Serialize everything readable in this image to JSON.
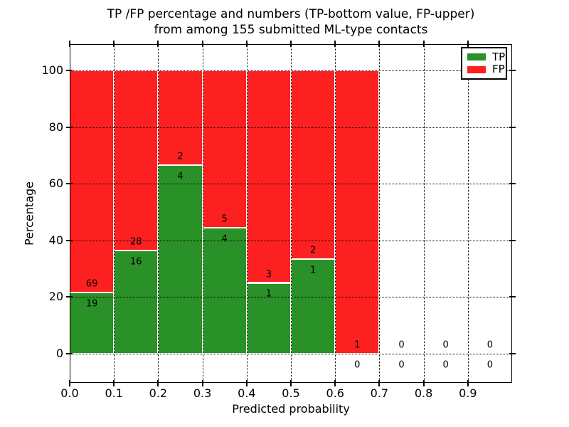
{
  "figure": {
    "title_line1": "TP /FP percentage and numbers (TP-bottom value, FP-upper)",
    "title_line2": "from among 155 submitted ML-type contacts"
  },
  "axes": {
    "xlabel": "Predicted probability",
    "ylabel": "Percentage",
    "x_tick_labels": [
      "0.0",
      "0.1",
      "0.2",
      "0.3",
      "0.4",
      "0.5",
      "0.6",
      "0.7",
      "0.8",
      "0.9"
    ],
    "y_tick_labels": [
      "0",
      "20",
      "40",
      "60",
      "80",
      "100"
    ]
  },
  "legend": {
    "position": "upper right",
    "entries": [
      {
        "label": "TP",
        "color": "#2a9128"
      },
      {
        "label": "FP",
        "color": "#fd2020"
      }
    ]
  },
  "chart_data": {
    "type": "bar",
    "subtype": "stacked-percentage-histogram",
    "title": "TP /FP percentage and numbers (TP-bottom value, FP-upper) from among 155 submitted ML-type contacts",
    "xlabel": "Predicted probability",
    "ylabel": "Percentage",
    "total_contacts": 155,
    "xlim": [
      0.0,
      1.0
    ],
    "ylim": [
      -10.3,
      109.3
    ],
    "x_ticks": [
      0.0,
      0.1,
      0.2,
      0.3,
      0.4,
      0.5,
      0.6,
      0.7,
      0.8,
      0.9
    ],
    "y_ticks": [
      0,
      20,
      40,
      60,
      80,
      100
    ],
    "bin_width": 0.1,
    "categories": [
      "0.0-0.1",
      "0.1-0.2",
      "0.2-0.3",
      "0.3-0.4",
      "0.4-0.5",
      "0.5-0.6",
      "0.6-0.7",
      "0.7-0.8",
      "0.8-0.9",
      "0.9-1.0"
    ],
    "series": [
      {
        "name": "TP",
        "color": "#2a9128",
        "counts": [
          19,
          16,
          4,
          4,
          1,
          1,
          0,
          0,
          0,
          0
        ]
      },
      {
        "name": "FP",
        "color": "#fd2020",
        "counts": [
          69,
          28,
          2,
          5,
          3,
          2,
          1,
          0,
          0,
          0
        ]
      }
    ],
    "tp_percent_of_bin": [
      21.6,
      36.4,
      66.7,
      44.4,
      25.0,
      33.3,
      0.0,
      null,
      null,
      null
    ],
    "bars_reach_percent": 100,
    "bar_edge_color": "#ffffff",
    "grid": {
      "visible": true,
      "linestyle": "dotted",
      "color": "#000000",
      "drawn_above_bars": true
    },
    "legend_position": "upper right",
    "annotation_note": "FP count printed above green/red boundary, TP count printed below it, per bin"
  }
}
